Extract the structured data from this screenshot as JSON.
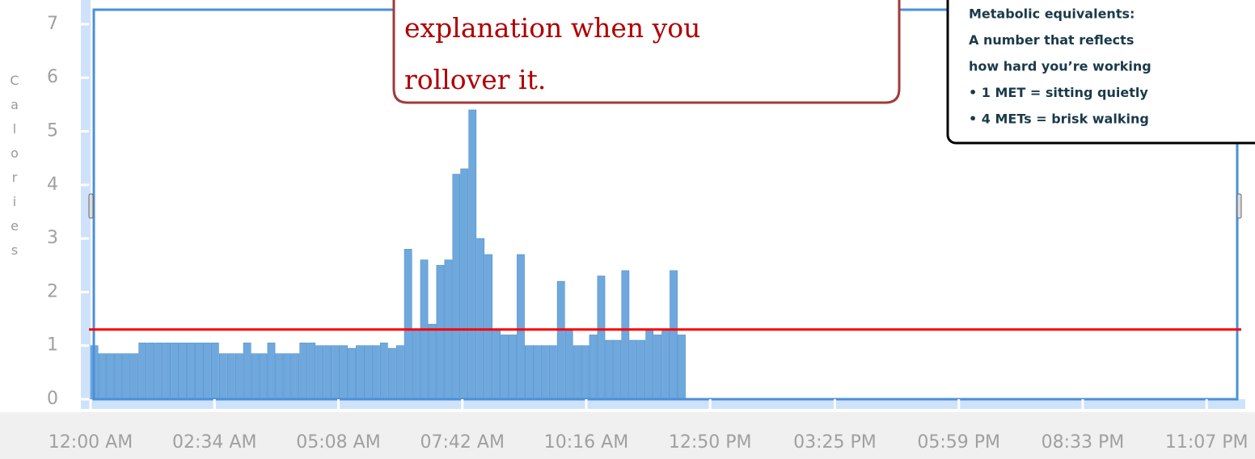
{
  "chart_data": {
    "type": "bar",
    "ylabel": "Calories",
    "x": [
      0,
      10,
      20,
      30,
      40,
      50,
      60,
      70,
      80,
      90,
      100,
      110,
      120,
      130,
      140,
      150,
      160,
      170,
      180,
      190,
      200,
      210,
      220,
      230,
      240,
      250,
      260,
      270,
      280,
      290,
      300,
      310,
      320,
      330,
      340,
      350,
      360,
      370,
      380,
      390,
      400,
      410,
      420,
      430,
      440,
      450,
      460,
      470,
      480,
      490,
      500,
      510,
      520,
      530,
      540,
      550,
      560,
      570,
      580,
      590,
      600,
      610,
      620,
      630,
      640,
      650,
      660,
      670,
      680,
      690,
      700,
      710,
      720,
      730
    ],
    "values": [
      1.0,
      0.85,
      0.85,
      0.85,
      0.85,
      0.85,
      1.05,
      1.05,
      1.05,
      1.05,
      1.05,
      1.05,
      1.05,
      1.05,
      1.05,
      1.05,
      0.85,
      0.85,
      0.85,
      1.05,
      0.85,
      0.85,
      1.05,
      0.85,
      0.85,
      0.85,
      1.05,
      1.05,
      1.0,
      1.0,
      1.0,
      1.0,
      0.95,
      1.0,
      1.0,
      1.0,
      1.05,
      0.95,
      1.0,
      2.8,
      1.3,
      2.6,
      1.4,
      2.5,
      2.6,
      4.2,
      4.3,
      5.4,
      3.0,
      2.7,
      1.3,
      1.2,
      1.2,
      2.7,
      1.0,
      1.0,
      1.0,
      1.0,
      2.2,
      1.3,
      1.0,
      1.0,
      1.2,
      2.3,
      1.1,
      1.1,
      2.4,
      1.1,
      1.1,
      1.3,
      1.2,
      1.3,
      2.4,
      1.2
    ],
    "color": "#6fa8dc",
    "bar_width": 10,
    "xlim": [
      0,
      1425
    ],
    "xticks": [
      {
        "value": 0,
        "label": "12:00 AM"
      },
      {
        "value": 154,
        "label": "02:34 AM"
      },
      {
        "value": 308,
        "label": "05:08 AM"
      },
      {
        "value": 462,
        "label": "07:42 AM"
      },
      {
        "value": 616,
        "label": "10:16 AM"
      },
      {
        "value": 770,
        "label": "12:50 PM"
      },
      {
        "value": 925,
        "label": "03:25 PM"
      },
      {
        "value": 1079,
        "label": "05:59 PM"
      },
      {
        "value": 1233,
        "label": "08:33 PM"
      },
      {
        "value": 1387,
        "label": "11:07 PM"
      }
    ],
    "ylim": [
      0,
      7.27
    ],
    "yticks": [
      0,
      1,
      2,
      3,
      4,
      5,
      6,
      7
    ],
    "reference_line": {
      "value": 1.3,
      "color": "#ff0000"
    },
    "annotations": [
      "explanation when you",
      "rollover it."
    ],
    "tooltip": [
      "Metabolic equivalents:",
      "A number that reflects",
      "how hard you’re working",
      "• 1 MET = sitting quietly",
      "• 4 METs = brisk walking"
    ]
  }
}
